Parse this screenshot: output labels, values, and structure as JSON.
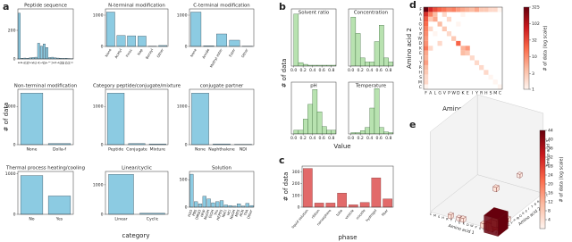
{
  "chart_data": [
    {
      "type": "bar",
      "panel": "a",
      "title": "Peptide sequence",
      "categories": [
        "F",
        "P",
        "R",
        "N",
        "Y",
        "K",
        "G",
        "A",
        "L",
        "D",
        "T",
        "I",
        "V",
        "S",
        "L",
        "Q",
        "M",
        "D",
        "H",
        "s"
      ],
      "values": [
        320,
        5,
        6,
        5,
        8,
        10,
        12,
        110,
        90,
        105,
        80,
        10,
        12,
        8,
        6,
        5,
        4,
        5,
        3,
        2
      ],
      "color": "#8ccbe2",
      "edgecolor": "#2b3f4c",
      "ylim": [
        0,
        350
      ],
      "yticks": [
        0,
        200
      ]
    },
    {
      "type": "bar",
      "title": "N-terminal modification",
      "categories": [
        "None",
        "Acetyl",
        "Fmoc",
        "Nap",
        "Benzyl",
        "Other"
      ],
      "values": [
        1100,
        350,
        340,
        330,
        10,
        30
      ],
      "color": "#8ccbe2",
      "edgecolor": "#2b3f4c",
      "ylim": [
        0,
        1200
      ],
      "yticks": [
        0,
        1000
      ]
    },
    {
      "type": "bar",
      "title": "C-terminal modification",
      "categories": [
        "None",
        "Amide",
        "Methyl ester",
        "Ester",
        "Other"
      ],
      "values": [
        1100,
        20,
        400,
        200,
        10
      ],
      "color": "#8ccbe2",
      "edgecolor": "#2b3f4c",
      "ylim": [
        0,
        1200
      ],
      "yticks": [
        0,
        1000
      ]
    },
    {
      "type": "bar",
      "title": "Non-terminal modification",
      "categories": [
        "None",
        "Dolla-f"
      ],
      "values": [
        1350,
        30
      ],
      "color": "#8ccbe2",
      "edgecolor": "#2b3f4c",
      "ylim": [
        0,
        1450
      ],
      "yticks": [
        0,
        1000
      ],
      "ylabel": "# of data"
    },
    {
      "type": "bar",
      "title": "Category peptide/conjugate/mixture",
      "categories": [
        "Peptide",
        "Conjugate",
        "Mixture"
      ],
      "values": [
        1350,
        30,
        20
      ],
      "color": "#8ccbe2",
      "edgecolor": "#2b3f4c",
      "ylim": [
        0,
        1450
      ],
      "yticks": [
        0,
        1000
      ]
    },
    {
      "type": "bar",
      "title": "conjugate partner",
      "categories": [
        "None",
        "Naphthalene",
        "NDI"
      ],
      "values": [
        1350,
        20,
        10
      ],
      "color": "#8ccbe2",
      "edgecolor": "#2b3f4c",
      "ylim": [
        0,
        1450
      ],
      "yticks": [
        0,
        1000
      ]
    },
    {
      "type": "bar",
      "title": "Thermal process heating/cooling",
      "categories": [
        "No",
        "Yes"
      ],
      "values": [
        950,
        450
      ],
      "color": "#8ccbe2",
      "edgecolor": "#2b3f4c",
      "ylim": [
        0,
        1050
      ],
      "yticks": [
        0,
        1000
      ]
    },
    {
      "type": "bar",
      "title": "Linear/cyclic",
      "categories": [
        "Linear",
        "Cyclic"
      ],
      "values": [
        1350,
        40
      ],
      "color": "#8ccbe2",
      "edgecolor": "#2b3f4c",
      "ylim": [
        0,
        1450
      ],
      "yticks": [
        0,
        1000
      ],
      "xlabel": "category"
    },
    {
      "type": "bar",
      "title": "Solution",
      "categories": [
        "H2O",
        "PBS",
        "DMSO",
        "HFIP",
        "MeOH",
        "EtOH",
        "Tris",
        "HEPES",
        "NaCl",
        "HCl",
        "NaOH",
        "MES",
        "ACN",
        "TFA",
        "Other"
      ],
      "values": [
        600,
        100,
        60,
        200,
        150,
        80,
        100,
        120,
        40,
        30,
        20,
        60,
        20,
        70,
        30
      ],
      "color": "#8ccbe2",
      "edgecolor": "#2b3f4c",
      "ylim": [
        0,
        650
      ],
      "yticks": [
        0,
        500
      ]
    },
    {
      "type": "histogram",
      "panel": "b",
      "title": "Solvent ratio",
      "bins": [
        0,
        0.1,
        0.2,
        0.3,
        0.4,
        0.5,
        0.6,
        0.7,
        0.8,
        0.9,
        1.0
      ],
      "values": [
        300,
        20,
        10,
        5,
        5,
        5,
        5,
        5,
        5,
        10
      ],
      "color": "#b8e2b0",
      "edgecolor": "#2f5f2f",
      "xlim": [
        -0.05,
        0.9
      ],
      "xticks": [
        {
          "value": 0,
          "label": "0.0"
        },
        0.2,
        0.4,
        0.6,
        0.8
      ],
      "ylim": [
        0,
        330
      ],
      "ylabel": "# of data"
    },
    {
      "type": "histogram",
      "title": "Concentration",
      "bins": [
        0,
        0.1,
        0.2,
        0.3,
        0.4,
        0.5,
        0.6,
        0.7,
        0.8,
        0.9,
        1.0
      ],
      "values": [
        60,
        40,
        10,
        5,
        5,
        30,
        50,
        10,
        5,
        5
      ],
      "color": "#b8e2b0",
      "edgecolor": "#2f5f2f",
      "xlim": [
        -0.05,
        0.9
      ],
      "xticks": [
        {
          "value": 0,
          "label": "0.0"
        },
        0.2,
        0.4,
        0.6,
        0.8
      ],
      "ylim": [
        0,
        70
      ]
    },
    {
      "type": "histogram",
      "title": "pH",
      "bins": [
        0,
        0.1,
        0.2,
        0.3,
        0.4,
        0.5,
        0.6,
        0.7,
        0.8,
        0.9,
        1.0
      ],
      "values": [
        5,
        5,
        20,
        40,
        60,
        30,
        10,
        5,
        5,
        5
      ],
      "color": "#b8e2b0",
      "edgecolor": "#2f5f2f",
      "xlim": [
        -0.05,
        0.9
      ],
      "xticks": [
        {
          "value": 0,
          "label": "0.0"
        },
        0.2,
        0.4,
        0.6,
        0.8
      ],
      "ylim": [
        0,
        70
      ],
      "xlabel": "Value"
    },
    {
      "type": "histogram",
      "title": "Temperature",
      "bins": [
        0,
        0.1,
        0.2,
        0.3,
        0.4,
        0.5,
        0.6,
        0.7,
        0.8,
        0.9,
        1.0
      ],
      "values": [
        2,
        2,
        5,
        10,
        40,
        70,
        10,
        3,
        2,
        2
      ],
      "color": "#b8e2b0",
      "edgecolor": "#2f5f2f",
      "xlim": [
        -0.05,
        0.9
      ],
      "xticks": [
        {
          "value": 0,
          "label": "0.0"
        },
        0.2,
        0.4,
        0.6,
        0.8
      ],
      "ylim": [
        0,
        80
      ]
    },
    {
      "type": "bar",
      "panel": "c",
      "categories": [
        "liquid solution",
        "ribbon",
        "nanosphere",
        "tube",
        "vesicle",
        "micelle",
        "hydrogel",
        "fiber"
      ],
      "values": [
        330,
        35,
        35,
        120,
        20,
        40,
        250,
        70
      ],
      "color": "#e26a6a",
      "edgecolor": "#7a2a2a",
      "ylim": [
        0,
        350
      ],
      "yticks": [
        0,
        100,
        200,
        300
      ],
      "xlabel": "phase",
      "ylabel": "# of data"
    },
    {
      "type": "heatmap",
      "panel": "d",
      "categories": [
        "F",
        "A",
        "L",
        "G",
        "V",
        "P",
        "W",
        "D",
        "K",
        "E",
        "I",
        "Y",
        "R",
        "H",
        "S",
        "M",
        "C"
      ],
      "values": [
        [
          325,
          60,
          30,
          20,
          15,
          10,
          12,
          8,
          6,
          5,
          4,
          6,
          3,
          3,
          2,
          2,
          1
        ],
        [
          50,
          12,
          4,
          null,
          2,
          null,
          null,
          null,
          1,
          null,
          null,
          null,
          null,
          null,
          null,
          null,
          null
        ],
        [
          25,
          3,
          6,
          null,
          null,
          2,
          null,
          null,
          null,
          null,
          null,
          null,
          null,
          null,
          null,
          null,
          null
        ],
        [
          18,
          null,
          null,
          4,
          null,
          null,
          null,
          1,
          null,
          null,
          null,
          null,
          null,
          null,
          null,
          null,
          null
        ],
        [
          12,
          2,
          null,
          null,
          3,
          null,
          null,
          null,
          null,
          null,
          null,
          null,
          null,
          null,
          null,
          null,
          null
        ],
        [
          10,
          null,
          1,
          null,
          null,
          2,
          null,
          null,
          null,
          null,
          null,
          null,
          null,
          null,
          null,
          null,
          null
        ],
        [
          8,
          null,
          null,
          null,
          null,
          null,
          3,
          null,
          null,
          null,
          null,
          null,
          null,
          null,
          null,
          null,
          null
        ],
        [
          9,
          null,
          null,
          2,
          null,
          null,
          null,
          20,
          null,
          null,
          null,
          null,
          null,
          null,
          null,
          null,
          null
        ],
        [
          14,
          2,
          null,
          null,
          null,
          null,
          null,
          null,
          5,
          8,
          null,
          null,
          null,
          null,
          null,
          null,
          null
        ],
        [
          6,
          null,
          null,
          null,
          null,
          null,
          null,
          null,
          4,
          3,
          null,
          null,
          null,
          null,
          null,
          null,
          null
        ],
        [
          5,
          null,
          null,
          null,
          null,
          null,
          null,
          null,
          null,
          null,
          2,
          null,
          null,
          null,
          null,
          null,
          null
        ],
        [
          7,
          null,
          null,
          null,
          null,
          null,
          null,
          null,
          null,
          null,
          null,
          2,
          null,
          null,
          null,
          null,
          null
        ],
        [
          4,
          null,
          null,
          null,
          null,
          null,
          null,
          null,
          null,
          null,
          null,
          null,
          2,
          null,
          null,
          null,
          null
        ],
        [
          3,
          null,
          null,
          null,
          null,
          null,
          null,
          null,
          null,
          null,
          null,
          null,
          null,
          2,
          null,
          null,
          null
        ],
        [
          2,
          null,
          null,
          null,
          null,
          null,
          null,
          null,
          null,
          null,
          null,
          null,
          null,
          null,
          1,
          null,
          null
        ],
        [
          2,
          null,
          null,
          null,
          null,
          null,
          null,
          null,
          null,
          null,
          null,
          null,
          null,
          null,
          null,
          1,
          null
        ],
        [
          1,
          null,
          null,
          null,
          null,
          null,
          null,
          null,
          null,
          null,
          null,
          null,
          null,
          null,
          null,
          null,
          1
        ]
      ],
      "log": true,
      "clim": [
        1,
        325
      ],
      "cticks": [
        1,
        3,
        10,
        32,
        102,
        325
      ],
      "colormap": [
        "#fff5f0",
        "#fcbba1",
        "#fb6a4a",
        "#cb181d",
        "#67000d"
      ],
      "colorbar_label": "# of data (log scale)",
      "xlabel": "Amino acid 1",
      "ylabel": "Amino acid 2"
    },
    {
      "type": "scatter3d",
      "panel": "e",
      "categories": [
        "F",
        "A",
        "L",
        "G",
        "V",
        "P",
        "W",
        "D",
        "K",
        "E",
        "I",
        "Y",
        "R",
        "H",
        "S",
        "M",
        "C"
      ],
      "points": [
        {
          "x": "Y",
          "y": "F",
          "z": "F",
          "value": 3
        },
        {
          "x": "E",
          "y": "F",
          "z": "F",
          "value": 2
        },
        {
          "x": "K",
          "y": "F",
          "z": "F",
          "value": 3
        },
        {
          "x": "F",
          "y": "K",
          "z": "D",
          "value": 2
        },
        {
          "x": "F",
          "y": "F",
          "z": "K",
          "value": 4
        },
        {
          "x": "G",
          "y": "F",
          "z": "F",
          "value": 5
        },
        {
          "x": "F",
          "y": "V",
          "z": "F",
          "value": 3
        },
        {
          "x": "F",
          "y": "G",
          "z": "F",
          "value": 4
        },
        {
          "x": "L",
          "y": "F",
          "z": "F",
          "value": 8
        },
        {
          "x": "F",
          "y": "L",
          "z": "F",
          "value": 6
        },
        {
          "x": "F",
          "y": "F",
          "z": "L",
          "value": 7
        },
        {
          "x": "A",
          "y": "F",
          "z": "F",
          "value": 16
        },
        {
          "x": "F",
          "y": "A",
          "z": "F",
          "value": 20
        },
        {
          "x": "F",
          "y": "F",
          "z": "A",
          "value": 12
        },
        {
          "x": "F",
          "y": "F",
          "z": "F",
          "value": 44
        }
      ],
      "clim": [
        0,
        44
      ],
      "cticks": [
        4,
        8,
        12,
        16,
        20,
        24,
        28,
        32,
        36,
        40,
        44
      ],
      "colormap": [
        "#fff5f0",
        "#fcbba1",
        "#fb6a4a",
        "#cb181d",
        "#67000d"
      ],
      "colorbar_label": "# of data (log scale)",
      "xlabel": "Amino acid 1",
      "ylabel": "Amino acid 2",
      "zlabel": "Amino acid 3"
    }
  ]
}
